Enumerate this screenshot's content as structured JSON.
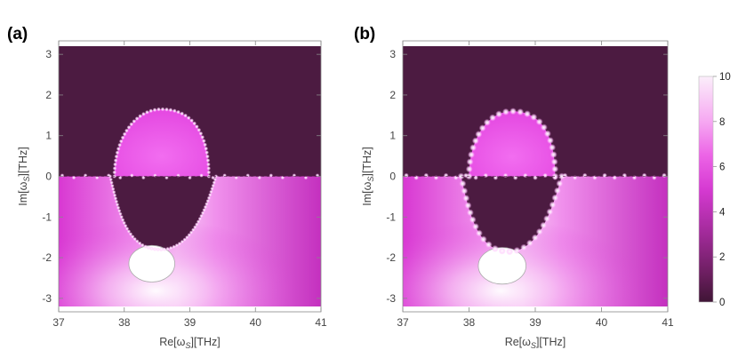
{
  "chart_data": [
    {
      "type": "heatmap",
      "panel_label": "(a)",
      "xlabel": "Re[ω",
      "xlabel_sub": "S",
      "xlabel_unit": "][THz]",
      "ylabel": "Im[ω",
      "ylabel_sub": "S",
      "ylabel_unit": "][THz]",
      "xlim": [
        37,
        41
      ],
      "ylim": [
        -3.2,
        3.2
      ],
      "xticks": [
        37,
        38,
        39,
        40,
        41
      ],
      "yticks": [
        -3,
        -2,
        -1,
        0,
        1,
        2,
        3
      ],
      "colormap": {
        "low": "#4a1a3f",
        "mid": "#e33ee0",
        "high": "#ffffff"
      },
      "regions": {
        "upper_background_value": 0.5,
        "lower_background_value": 6,
        "upper_lobe": {
          "center": [
            38.57,
            0.8
          ],
          "x_half_width": 0.72,
          "top": 1.65,
          "value": 6
        },
        "lower_lobe": {
          "center": [
            38.55,
            -0.9
          ],
          "x_half_width": 0.85,
          "bottom": -1.8,
          "value": 0.5
        },
        "pole": {
          "center": [
            38.42,
            -2.15
          ],
          "rx": 0.35,
          "ry": 0.45,
          "value": 10
        }
      }
    },
    {
      "type": "heatmap",
      "panel_label": "(b)",
      "xlabel": "Re[ω",
      "xlabel_sub": "S",
      "xlabel_unit": "][THz]",
      "ylabel": "Im[ω",
      "ylabel_sub": "S",
      "ylabel_unit": "][THz]",
      "xlim": [
        37,
        41
      ],
      "ylim": [
        -3.2,
        3.2
      ],
      "xticks": [
        37,
        38,
        39,
        40,
        41
      ],
      "yticks": [
        -3,
        -2,
        -1,
        0,
        1,
        2,
        3
      ],
      "colormap": {
        "low": "#4a1a3f",
        "mid": "#e33ee0",
        "high": "#ffffff"
      },
      "regions": {
        "upper_background_value": 0.5,
        "lower_background_value": 6,
        "upper_lobe": {
          "center": [
            38.65,
            0.7
          ],
          "x_half_width": 0.65,
          "top": 1.6,
          "value": 6
        },
        "lower_lobe": {
          "center": [
            38.6,
            -1.0
          ],
          "x_half_width": 0.8,
          "bottom": -1.85,
          "value": 0.5
        },
        "pole": {
          "center": [
            38.5,
            -2.2
          ],
          "rx": 0.36,
          "ry": 0.45,
          "value": 10
        }
      }
    }
  ],
  "colorbar": {
    "ticks": [
      "0",
      "2",
      "4",
      "6",
      "8",
      "10"
    ],
    "tick_values": [
      0,
      2,
      4,
      6,
      8,
      10
    ],
    "range": [
      0,
      10
    ]
  }
}
